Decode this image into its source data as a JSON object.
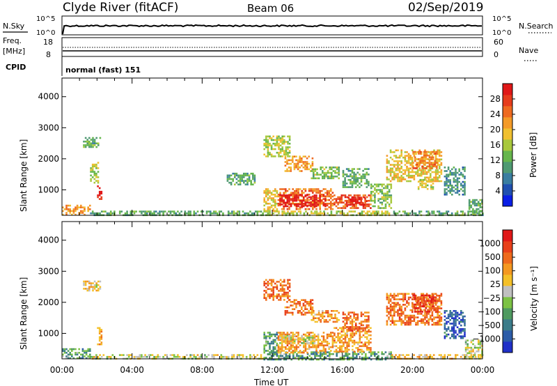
{
  "header": {
    "station": "Clyde River (fitACF)",
    "beam": "Beam 06",
    "date": "02/Sep/2019"
  },
  "panels": {
    "nsky": {
      "label": "N.Sky",
      "ticks": [
        "10^5",
        "10^0"
      ],
      "right_label": "N.Search",
      "right_ticks": [
        "10^5",
        "10^0"
      ]
    },
    "freq": {
      "label_top": "Freq.",
      "label_unit": "[MHz]",
      "ticks": [
        "18",
        "8"
      ],
      "right_label": "Nave",
      "right_ticks": [
        "60",
        "0"
      ]
    },
    "cpid": {
      "label": "CPID",
      "value": "normal (fast) 151"
    }
  },
  "chart_data": [
    {
      "type": "heatmap",
      "name": "power-rti",
      "ylabel": "Slant Range [km]",
      "yticks": [
        1000,
        2000,
        3000,
        4000
      ],
      "ylim": [
        180,
        4600
      ],
      "colorbar": {
        "label": "Power [dB]",
        "ticks": [
          "4",
          "8",
          "12",
          "16",
          "20",
          "24",
          "28"
        ],
        "colors": [
          "#0a1ee6",
          "#2050b0",
          "#3a7ea0",
          "#4f9a72",
          "#66b64c",
          "#a8c83c",
          "#f0c030",
          "#f49a28",
          "#ee6a20",
          "#e63c1c",
          "#e01818"
        ]
      },
      "regions": [
        {
          "x0": 0.0,
          "x1": 1.6,
          "y0": 180,
          "y1": 520,
          "v": 18
        },
        {
          "x0": 1.6,
          "x1": 11.5,
          "y0": 180,
          "y1": 330,
          "v": 10
        },
        {
          "x0": 11.5,
          "x1": 18.8,
          "y0": 180,
          "y1": 330,
          "v": 14
        },
        {
          "x0": 18.8,
          "x1": 24.0,
          "y0": 180,
          "y1": 330,
          "v": 10
        },
        {
          "x0": 11.5,
          "x1": 12.3,
          "y0": 330,
          "y1": 1050,
          "v": 16
        },
        {
          "x0": 12.3,
          "x1": 15.5,
          "y0": 350,
          "y1": 1050,
          "v": 20
        },
        {
          "x0": 12.4,
          "x1": 15.0,
          "y0": 480,
          "y1": 850,
          "v": 27
        },
        {
          "x0": 15.5,
          "x1": 17.6,
          "y0": 400,
          "y1": 850,
          "v": 22
        },
        {
          "x0": 16.2,
          "x1": 17.4,
          "y0": 500,
          "y1": 780,
          "v": 26
        },
        {
          "x0": 17.6,
          "x1": 18.8,
          "y0": 400,
          "y1": 1200,
          "v": 12
        },
        {
          "x0": 2.0,
          "x1": 2.3,
          "y0": 700,
          "y1": 1200,
          "v": 26
        },
        {
          "x0": 1.2,
          "x1": 2.2,
          "y0": 2350,
          "y1": 2700,
          "v": 10
        },
        {
          "x0": 1.6,
          "x1": 2.1,
          "y0": 1200,
          "y1": 1900,
          "v": 14
        },
        {
          "x0": 9.4,
          "x1": 11.0,
          "y0": 1150,
          "y1": 1550,
          "v": 10
        },
        {
          "x0": 11.5,
          "x1": 13.0,
          "y0": 2100,
          "y1": 2750,
          "v": 14
        },
        {
          "x0": 12.7,
          "x1": 14.3,
          "y0": 1600,
          "y1": 2100,
          "v": 18
        },
        {
          "x0": 14.2,
          "x1": 15.8,
          "y0": 1350,
          "y1": 1750,
          "v": 12
        },
        {
          "x0": 16.0,
          "x1": 17.5,
          "y0": 1100,
          "y1": 1700,
          "v": 10
        },
        {
          "x0": 18.5,
          "x1": 21.6,
          "y0": 1300,
          "y1": 2300,
          "v": 16
        },
        {
          "x0": 20.0,
          "x1": 21.4,
          "y0": 1700,
          "y1": 2250,
          "v": 20
        },
        {
          "x0": 20.3,
          "x1": 21.2,
          "y0": 1050,
          "y1": 1350,
          "v": 14
        },
        {
          "x0": 21.8,
          "x1": 23.0,
          "y0": 850,
          "y1": 1750,
          "v": 8
        },
        {
          "x0": 23.2,
          "x1": 24.0,
          "y0": 180,
          "y1": 700,
          "v": 10
        }
      ]
    },
    {
      "type": "heatmap",
      "name": "velocity-rti",
      "ylabel": "Slant Range [km]",
      "yticks": [
        1000,
        2000,
        3000,
        4000
      ],
      "ylim": [
        180,
        4600
      ],
      "xticks": [
        "00:00",
        "04:00",
        "08:00",
        "12:00",
        "16:00",
        "20:00",
        "00:00"
      ],
      "xlabel": "Time UT",
      "colorbar": {
        "label": "Velocity [m s⁻¹]",
        "ticks": [
          "1000",
          "500",
          "100",
          "25",
          "−25",
          "−100",
          "−500",
          "−1000"
        ],
        "colors": [
          "#2030c8",
          "#2c5ca8",
          "#3b7c8a",
          "#4f9a60",
          "#7cc244",
          "#c0c0c0",
          "#f4c028",
          "#f49820",
          "#ee6a1c",
          "#e8401a",
          "#e01818"
        ]
      },
      "regions": [
        {
          "x0": 0.0,
          "x1": 1.6,
          "y0": 180,
          "y1": 520,
          "v": 3
        },
        {
          "x0": 1.6,
          "x1": 11.5,
          "y0": 180,
          "y1": 330,
          "v": 5
        },
        {
          "x0": 11.5,
          "x1": 18.8,
          "y0": 180,
          "y1": 420,
          "v": 3
        },
        {
          "x0": 18.8,
          "x1": 24.0,
          "y0": 180,
          "y1": 330,
          "v": 6
        },
        {
          "x0": 11.5,
          "x1": 12.3,
          "y0": 330,
          "y1": 1050,
          "v": 3
        },
        {
          "x0": 12.3,
          "x1": 15.5,
          "y0": 350,
          "y1": 1050,
          "v": 7
        },
        {
          "x0": 12.4,
          "x1": 14.4,
          "y0": 700,
          "y1": 950,
          "v": 5
        },
        {
          "x0": 15.5,
          "x1": 17.6,
          "y0": 400,
          "y1": 1200,
          "v": 7
        },
        {
          "x0": 2.0,
          "x1": 2.3,
          "y0": 650,
          "y1": 1200,
          "v": 7
        },
        {
          "x0": 1.2,
          "x1": 2.2,
          "y0": 2350,
          "y1": 2700,
          "v": 6
        },
        {
          "x0": 11.5,
          "x1": 13.0,
          "y0": 2100,
          "y1": 2750,
          "v": 8
        },
        {
          "x0": 12.7,
          "x1": 14.3,
          "y0": 1600,
          "y1": 2100,
          "v": 8
        },
        {
          "x0": 14.2,
          "x1": 15.8,
          "y0": 1350,
          "y1": 1750,
          "v": 7
        },
        {
          "x0": 16.0,
          "x1": 17.5,
          "y0": 1100,
          "y1": 1700,
          "v": 8
        },
        {
          "x0": 18.5,
          "x1": 21.6,
          "y0": 1300,
          "y1": 2300,
          "v": 8
        },
        {
          "x0": 20.0,
          "x1": 21.4,
          "y0": 1700,
          "y1": 2250,
          "v": 9
        },
        {
          "x0": 21.8,
          "x1": 23.0,
          "y0": 850,
          "y1": 1750,
          "v": 1
        },
        {
          "x0": 23.0,
          "x1": 24.0,
          "y0": 180,
          "y1": 800,
          "v": 5
        }
      ]
    }
  ]
}
